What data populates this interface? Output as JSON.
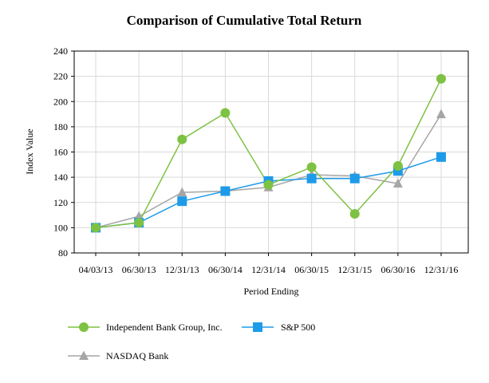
{
  "chart_data": {
    "type": "line",
    "title": "Comparison of Cumulative Total Return",
    "xlabel": "Period Ending",
    "ylabel": "Index Value",
    "categories": [
      "04/03/13",
      "06/30/13",
      "12/31/13",
      "06/30/14",
      "12/31/14",
      "06/30/15",
      "12/31/15",
      "06/30/16",
      "12/31/16"
    ],
    "ylim": [
      80,
      240
    ],
    "yticks": [
      80,
      100,
      120,
      140,
      160,
      180,
      200,
      220,
      240
    ],
    "grid": true,
    "legend_position": "bottom-left",
    "series": [
      {
        "name": "Independent Bank Group, Inc.",
        "marker": "circle",
        "color": "#7dc242",
        "values": [
          100,
          104,
          170,
          191,
          134,
          148,
          111,
          149,
          218
        ]
      },
      {
        "name": "S&P 500",
        "marker": "square",
        "color": "#1e9be8",
        "values": [
          100,
          104,
          121,
          129,
          137,
          139,
          139,
          145,
          156
        ]
      },
      {
        "name": "NASDAQ Bank",
        "marker": "triangle",
        "color": "#a6a6a6",
        "values": [
          100,
          109,
          128,
          129,
          132,
          142,
          141,
          135,
          190
        ]
      }
    ]
  }
}
